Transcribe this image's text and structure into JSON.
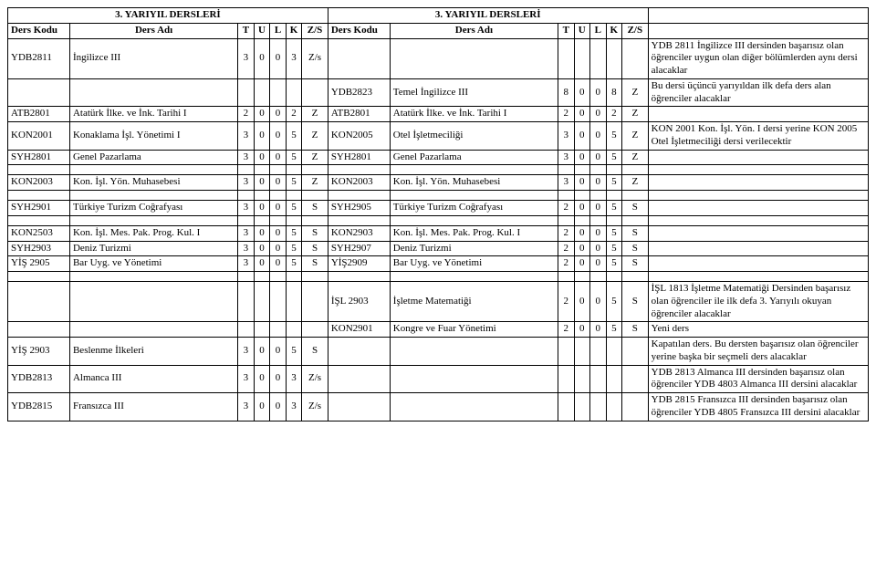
{
  "headers": {
    "left_title": "3. YARIYIL DERSLERİ",
    "right_title": "3. YARIYIL DERSLERİ",
    "cols": {
      "ders_kodu": "Ders Kodu",
      "ders_adi": "Ders Adı",
      "t": "T",
      "u": "U",
      "l": "L",
      "k": "K",
      "zs": "Z/S"
    }
  },
  "rows": [
    {
      "l": {
        "code": "YDB2811",
        "name": "İngilizce III",
        "t": "3",
        "u": "0",
        "l": "0",
        "k": "3",
        "zs": "Z/s"
      },
      "r": null,
      "note": "YDB 2811 İngilizce III dersinden başarısız olan öğrenciler uygun olan diğer bölümlerden aynı dersi alacaklar"
    },
    {
      "l": null,
      "r": {
        "code": "YDB2823",
        "name": "Temel İngilizce III",
        "t": "8",
        "u": "0",
        "l": "0",
        "k": "8",
        "zs": "Z"
      },
      "note": "Bu dersi üçüncü yarıyıldan ilk defa ders alan öğrenciler alacaklar"
    },
    {
      "l": {
        "code": "ATB2801",
        "name": "Atatürk İlke. ve İnk. Tarihi I",
        "t": "2",
        "u": "0",
        "l": "0",
        "k": "2",
        "zs": "Z"
      },
      "r": {
        "code": "ATB2801",
        "name": "Atatürk İlke. ve İnk. Tarihi I",
        "t": "2",
        "u": "0",
        "l": "0",
        "k": "2",
        "zs": "Z"
      },
      "note": ""
    },
    {
      "l": {
        "code": "KON2001",
        "name": "Konaklama İşl. Yönetimi I",
        "t": "3",
        "u": "0",
        "l": "0",
        "k": "5",
        "zs": "Z"
      },
      "r": {
        "code": "KON2005",
        "name": "Otel İşletmeciliği",
        "t": "3",
        "u": "0",
        "l": "0",
        "k": "5",
        "zs": "Z"
      },
      "note": "KON 2001 Kon. İşl. Yön. I dersi yerine KON 2005 Otel İşletmeciliği dersi verilecektir"
    },
    {
      "l": {
        "code": "SYH2801",
        "name": "Genel Pazarlama",
        "t": "3",
        "u": "0",
        "l": "0",
        "k": "5",
        "zs": "Z"
      },
      "r": {
        "code": "SYH2801",
        "name": "Genel Pazarlama",
        "t": "3",
        "u": "0",
        "l": "0",
        "k": "5",
        "zs": "Z"
      },
      "note": ""
    },
    {
      "l": {
        "code": "KON2003",
        "name": "Kon. İşl. Yön. Muhasebesi",
        "t": "3",
        "u": "0",
        "l": "0",
        "k": "5",
        "zs": "Z"
      },
      "r": {
        "code": "KON2003",
        "name": "Kon. İşl. Yön. Muhasebesi",
        "t": "3",
        "u": "0",
        "l": "0",
        "k": "5",
        "zs": "Z"
      },
      "note": ""
    },
    {
      "l": {
        "code": "SYH2901",
        "name": "Türkiye Turizm Coğrafyası",
        "t": "3",
        "u": "0",
        "l": "0",
        "k": "5",
        "zs": "S"
      },
      "r": {
        "code": "SYH2905",
        "name": "Türkiye Turizm Coğrafyası",
        "t": "2",
        "u": "0",
        "l": "0",
        "k": "5",
        "zs": "S"
      },
      "note": ""
    },
    {
      "l": {
        "code": "KON2503",
        "name": "Kon. İşl. Mes. Pak. Prog. Kul. I",
        "t": "3",
        "u": "0",
        "l": "0",
        "k": "5",
        "zs": "S"
      },
      "r": {
        "code": "KON2903",
        "name": "Kon. İşl. Mes. Pak. Prog. Kul. I",
        "t": "2",
        "u": "0",
        "l": "0",
        "k": "5",
        "zs": "S"
      },
      "note": ""
    },
    {
      "l": {
        "code": "SYH2903",
        "name": "Deniz Turizmi",
        "t": "3",
        "u": "0",
        "l": "0",
        "k": "5",
        "zs": "S"
      },
      "r": {
        "code": "SYH2907",
        "name": "Deniz Turizmi",
        "t": "2",
        "u": "0",
        "l": "0",
        "k": "5",
        "zs": "S"
      },
      "note": ""
    },
    {
      "l": {
        "code": "YİŞ 2905",
        "name": "Bar Uyg. ve Yönetimi",
        "t": "3",
        "u": "0",
        "l": "0",
        "k": "5",
        "zs": "S"
      },
      "r": {
        "code": "YİŞ2909",
        "name": "Bar Uyg. ve Yönetimi",
        "t": "2",
        "u": "0",
        "l": "0",
        "k": "5",
        "zs": "S"
      },
      "note": ""
    },
    {
      "l": null,
      "r": {
        "code": "İŞL 2903",
        "name": "İşletme Matematiği",
        "t": "2",
        "u": "0",
        "l": "0",
        "k": "5",
        "zs": "S"
      },
      "note": "İŞL 1813 İşletme Matematiği Dersinden başarısız olan öğrenciler ile ilk defa 3. Yarıyılı okuyan öğrenciler alacaklar"
    },
    {
      "l": null,
      "r": {
        "code": "KON2901",
        "name": "Kongre ve Fuar Yönetimi",
        "t": "2",
        "u": "0",
        "l": "0",
        "k": "5",
        "zs": "S"
      },
      "note": "Yeni ders"
    },
    {
      "l": {
        "code": "YİŞ 2903",
        "name": "Beslenme İlkeleri",
        "t": "3",
        "u": "0",
        "l": "0",
        "k": "5",
        "zs": "S"
      },
      "r": null,
      "note": "Kapatılan ders. Bu dersten başarısız olan öğrenciler yerine başka bir seçmeli ders alacaklar"
    },
    {
      "l": {
        "code": "YDB2813",
        "name": "Almanca III",
        "t": "3",
        "u": "0",
        "l": "0",
        "k": "3",
        "zs": "Z/s"
      },
      "r": null,
      "note": "YDB 2813 Almanca III dersinden başarısız olan öğrenciler YDB 4803 Almanca III dersini alacaklar"
    },
    {
      "l": {
        "code": "YDB2815",
        "name": "Fransızca III",
        "t": "3",
        "u": "0",
        "l": "0",
        "k": "3",
        "zs": "Z/s"
      },
      "r": null,
      "note": "YDB 2815 Fransızca III dersinden başarısız olan öğrenciler YDB 4805 Fransızca III dersini alacaklar"
    }
  ],
  "widths": {
    "code": 62,
    "name": 168,
    "num": 16,
    "zs": 26,
    "note": 220
  }
}
